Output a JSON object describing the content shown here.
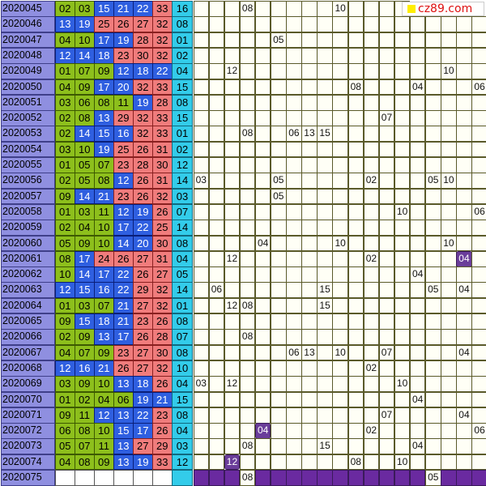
{
  "logo": {
    "text": "cz89.com",
    "colors": {
      "square": "#ffee00",
      "text": "#dd1111"
    }
  },
  "colors": {
    "issue_bg": "#8f8fe0",
    "green_ball": "#8dbf1c",
    "blue_ball": "#2f5fe0",
    "red_ball": "#f07c7c",
    "cyan_ball": "#33ccea",
    "highlight": "#6a3d9a"
  },
  "rows": [
    {
      "issue": "2020045",
      "balls": [
        [
          "02",
          "g"
        ],
        [
          "03",
          "g"
        ],
        [
          "15",
          "b"
        ],
        [
          "21",
          "b"
        ],
        [
          "22",
          "b"
        ],
        [
          "33",
          "r"
        ]
      ],
      "special": "16",
      "hits": [
        [
          3,
          "08"
        ],
        [
          9,
          "10"
        ]
      ]
    },
    {
      "issue": "2020046",
      "balls": [
        [
          "13",
          "b"
        ],
        [
          "19",
          "b"
        ],
        [
          "25",
          "r"
        ],
        [
          "26",
          "r"
        ],
        [
          "27",
          "r"
        ],
        [
          "32",
          "r"
        ]
      ],
      "special": "08",
      "hits": []
    },
    {
      "issue": "2020047",
      "balls": [
        [
          "04",
          "g"
        ],
        [
          "10",
          "g"
        ],
        [
          "17",
          "b"
        ],
        [
          "19",
          "b"
        ],
        [
          "28",
          "r"
        ],
        [
          "32",
          "r"
        ]
      ],
      "special": "01",
      "hits": [
        [
          5,
          "05"
        ]
      ]
    },
    {
      "issue": "2020048",
      "balls": [
        [
          "12",
          "b"
        ],
        [
          "14",
          "b"
        ],
        [
          "18",
          "b"
        ],
        [
          "23",
          "r"
        ],
        [
          "30",
          "r"
        ],
        [
          "32",
          "r"
        ]
      ],
      "special": "02",
      "hits": []
    },
    {
      "issue": "2020049",
      "balls": [
        [
          "01",
          "g"
        ],
        [
          "07",
          "g"
        ],
        [
          "09",
          "g"
        ],
        [
          "12",
          "b"
        ],
        [
          "18",
          "b"
        ],
        [
          "22",
          "b"
        ]
      ],
      "special": "04",
      "hits": [
        [
          2,
          "12"
        ],
        [
          16,
          "10"
        ]
      ]
    },
    {
      "issue": "2020050",
      "balls": [
        [
          "04",
          "g"
        ],
        [
          "09",
          "g"
        ],
        [
          "17",
          "b"
        ],
        [
          "20",
          "b"
        ],
        [
          "32",
          "r"
        ],
        [
          "33",
          "r"
        ]
      ],
      "special": "15",
      "hits": [
        [
          10,
          "08"
        ],
        [
          14,
          "04"
        ],
        [
          18,
          "06"
        ]
      ]
    },
    {
      "issue": "2020051",
      "balls": [
        [
          "03",
          "g"
        ],
        [
          "06",
          "g"
        ],
        [
          "08",
          "g"
        ],
        [
          "11",
          "g"
        ],
        [
          "19",
          "b"
        ],
        [
          "28",
          "r"
        ]
      ],
      "special": "08",
      "hits": []
    },
    {
      "issue": "2020052",
      "balls": [
        [
          "02",
          "g"
        ],
        [
          "08",
          "g"
        ],
        [
          "13",
          "b"
        ],
        [
          "29",
          "r"
        ],
        [
          "32",
          "r"
        ],
        [
          "33",
          "r"
        ]
      ],
      "special": "15",
      "hits": [
        [
          12,
          "07"
        ]
      ]
    },
    {
      "issue": "2020053",
      "balls": [
        [
          "02",
          "g"
        ],
        [
          "14",
          "b"
        ],
        [
          "15",
          "b"
        ],
        [
          "16",
          "b"
        ],
        [
          "32",
          "r"
        ],
        [
          "33",
          "r"
        ]
      ],
      "special": "01",
      "hits": [
        [
          3,
          "08"
        ],
        [
          6,
          "06"
        ],
        [
          7,
          "13"
        ],
        [
          8,
          "15"
        ]
      ]
    },
    {
      "issue": "2020054",
      "balls": [
        [
          "03",
          "g"
        ],
        [
          "10",
          "g"
        ],
        [
          "19",
          "b"
        ],
        [
          "25",
          "r"
        ],
        [
          "26",
          "r"
        ],
        [
          "31",
          "r"
        ]
      ],
      "special": "02",
      "hits": []
    },
    {
      "issue": "2020055",
      "balls": [
        [
          "01",
          "g"
        ],
        [
          "05",
          "g"
        ],
        [
          "07",
          "g"
        ],
        [
          "23",
          "r"
        ],
        [
          "28",
          "r"
        ],
        [
          "30",
          "r"
        ]
      ],
      "special": "12",
      "hits": []
    },
    {
      "issue": "2020056",
      "balls": [
        [
          "02",
          "g"
        ],
        [
          "05",
          "g"
        ],
        [
          "08",
          "g"
        ],
        [
          "12",
          "b"
        ],
        [
          "26",
          "r"
        ],
        [
          "31",
          "r"
        ]
      ],
      "special": "14",
      "hits": [
        [
          0,
          "03"
        ],
        [
          5,
          "05"
        ],
        [
          11,
          "02"
        ],
        [
          15,
          "05"
        ],
        [
          16,
          "10"
        ]
      ]
    },
    {
      "issue": "2020057",
      "balls": [
        [
          "09",
          "g"
        ],
        [
          "14",
          "b"
        ],
        [
          "21",
          "b"
        ],
        [
          "23",
          "r"
        ],
        [
          "26",
          "r"
        ],
        [
          "32",
          "r"
        ]
      ],
      "special": "03",
      "hits": [
        [
          5,
          "05"
        ]
      ]
    },
    {
      "issue": "2020058",
      "balls": [
        [
          "01",
          "g"
        ],
        [
          "03",
          "g"
        ],
        [
          "11",
          "g"
        ],
        [
          "12",
          "b"
        ],
        [
          "19",
          "b"
        ],
        [
          "26",
          "r"
        ]
      ],
      "special": "07",
      "hits": [
        [
          13,
          "10"
        ],
        [
          18,
          "06"
        ]
      ]
    },
    {
      "issue": "2020059",
      "balls": [
        [
          "02",
          "g"
        ],
        [
          "04",
          "g"
        ],
        [
          "10",
          "g"
        ],
        [
          "17",
          "b"
        ],
        [
          "22",
          "b"
        ],
        [
          "25",
          "r"
        ]
      ],
      "special": "14",
      "hits": []
    },
    {
      "issue": "2020060",
      "balls": [
        [
          "05",
          "g"
        ],
        [
          "09",
          "g"
        ],
        [
          "10",
          "g"
        ],
        [
          "14",
          "b"
        ],
        [
          "20",
          "b"
        ],
        [
          "30",
          "r"
        ]
      ],
      "special": "08",
      "hits": [
        [
          4,
          "04"
        ],
        [
          9,
          "10"
        ],
        [
          16,
          "10"
        ]
      ]
    },
    {
      "issue": "2020061",
      "balls": [
        [
          "08",
          "g"
        ],
        [
          "17",
          "b"
        ],
        [
          "24",
          "r"
        ],
        [
          "26",
          "r"
        ],
        [
          "27",
          "r"
        ],
        [
          "31",
          "r"
        ]
      ],
      "special": "04",
      "hits": [
        [
          2,
          "12"
        ],
        [
          11,
          "02"
        ],
        [
          17,
          "04",
          "pur"
        ]
      ]
    },
    {
      "issue": "2020062",
      "balls": [
        [
          "10",
          "g"
        ],
        [
          "14",
          "b"
        ],
        [
          "17",
          "b"
        ],
        [
          "22",
          "b"
        ],
        [
          "26",
          "r"
        ],
        [
          "27",
          "r"
        ]
      ],
      "special": "05",
      "hits": [
        [
          14,
          "04"
        ]
      ]
    },
    {
      "issue": "2020063",
      "balls": [
        [
          "12",
          "b"
        ],
        [
          "15",
          "b"
        ],
        [
          "16",
          "b"
        ],
        [
          "22",
          "b"
        ],
        [
          "29",
          "r"
        ],
        [
          "32",
          "r"
        ]
      ],
      "special": "14",
      "hits": [
        [
          1,
          "06"
        ],
        [
          8,
          "15"
        ],
        [
          15,
          "05"
        ],
        [
          17,
          "04"
        ]
      ]
    },
    {
      "issue": "2020064",
      "balls": [
        [
          "01",
          "g"
        ],
        [
          "03",
          "g"
        ],
        [
          "07",
          "g"
        ],
        [
          "21",
          "b"
        ],
        [
          "27",
          "r"
        ],
        [
          "32",
          "r"
        ]
      ],
      "special": "01",
      "hits": [
        [
          2,
          "12"
        ],
        [
          3,
          "08"
        ],
        [
          8,
          "15"
        ]
      ]
    },
    {
      "issue": "2020065",
      "balls": [
        [
          "09",
          "g"
        ],
        [
          "15",
          "b"
        ],
        [
          "18",
          "b"
        ],
        [
          "21",
          "b"
        ],
        [
          "23",
          "r"
        ],
        [
          "26",
          "r"
        ]
      ],
      "special": "08",
      "hits": []
    },
    {
      "issue": "2020066",
      "balls": [
        [
          "02",
          "g"
        ],
        [
          "09",
          "g"
        ],
        [
          "13",
          "b"
        ],
        [
          "17",
          "b"
        ],
        [
          "26",
          "r"
        ],
        [
          "28",
          "r"
        ]
      ],
      "special": "07",
      "hits": [
        [
          3,
          "08"
        ]
      ]
    },
    {
      "issue": "2020067",
      "balls": [
        [
          "04",
          "g"
        ],
        [
          "07",
          "g"
        ],
        [
          "09",
          "g"
        ],
        [
          "23",
          "r"
        ],
        [
          "27",
          "r"
        ],
        [
          "30",
          "r"
        ]
      ],
      "special": "08",
      "hits": [
        [
          6,
          "06"
        ],
        [
          7,
          "13"
        ],
        [
          9,
          "10"
        ],
        [
          12,
          "07"
        ],
        [
          17,
          "04"
        ]
      ]
    },
    {
      "issue": "2020068",
      "balls": [
        [
          "12",
          "b"
        ],
        [
          "16",
          "b"
        ],
        [
          "21",
          "b"
        ],
        [
          "26",
          "r"
        ],
        [
          "27",
          "r"
        ],
        [
          "32",
          "r"
        ]
      ],
      "special": "10",
      "hits": [
        [
          11,
          "02"
        ]
      ]
    },
    {
      "issue": "2020069",
      "balls": [
        [
          "03",
          "g"
        ],
        [
          "09",
          "g"
        ],
        [
          "10",
          "g"
        ],
        [
          "13",
          "b"
        ],
        [
          "18",
          "b"
        ],
        [
          "26",
          "r"
        ]
      ],
      "special": "04",
      "hits": [
        [
          0,
          "03"
        ],
        [
          2,
          "12"
        ],
        [
          13,
          "10"
        ]
      ]
    },
    {
      "issue": "2020070",
      "balls": [
        [
          "01",
          "g"
        ],
        [
          "02",
          "g"
        ],
        [
          "04",
          "g"
        ],
        [
          "06",
          "g"
        ],
        [
          "19",
          "b"
        ],
        [
          "21",
          "b"
        ]
      ],
      "special": "15",
      "hits": [
        [
          14,
          "04"
        ]
      ]
    },
    {
      "issue": "2020071",
      "balls": [
        [
          "09",
          "g"
        ],
        [
          "11",
          "g"
        ],
        [
          "12",
          "b"
        ],
        [
          "13",
          "b"
        ],
        [
          "22",
          "b"
        ],
        [
          "23",
          "r"
        ]
      ],
      "special": "08",
      "hits": [
        [
          12,
          "07"
        ],
        [
          17,
          "04"
        ]
      ]
    },
    {
      "issue": "2020072",
      "balls": [
        [
          "06",
          "g"
        ],
        [
          "08",
          "g"
        ],
        [
          "10",
          "g"
        ],
        [
          "15",
          "b"
        ],
        [
          "17",
          "b"
        ],
        [
          "26",
          "r"
        ]
      ],
      "special": "04",
      "hits": [
        [
          4,
          "04",
          "pur"
        ],
        [
          11,
          "02"
        ],
        [
          18,
          "06"
        ]
      ]
    },
    {
      "issue": "2020073",
      "balls": [
        [
          "05",
          "g"
        ],
        [
          "07",
          "g"
        ],
        [
          "11",
          "g"
        ],
        [
          "13",
          "b"
        ],
        [
          "27",
          "r"
        ],
        [
          "29",
          "r"
        ]
      ],
      "special": "03",
      "hits": [
        [
          3,
          "08"
        ],
        [
          8,
          "15"
        ],
        [
          14,
          "04"
        ]
      ]
    },
    {
      "issue": "2020074",
      "balls": [
        [
          "04",
          "g"
        ],
        [
          "08",
          "g"
        ],
        [
          "09",
          "g"
        ],
        [
          "13",
          "b"
        ],
        [
          "19",
          "b"
        ],
        [
          "33",
          "r"
        ]
      ],
      "special": "12",
      "hits": [
        [
          2,
          "12",
          "pur"
        ],
        [
          10,
          "08"
        ],
        [
          13,
          "10"
        ]
      ]
    }
  ],
  "next_row": {
    "issue": "2020075",
    "hits": [
      [
        3,
        "08"
      ],
      [
        15,
        "05"
      ]
    ]
  }
}
